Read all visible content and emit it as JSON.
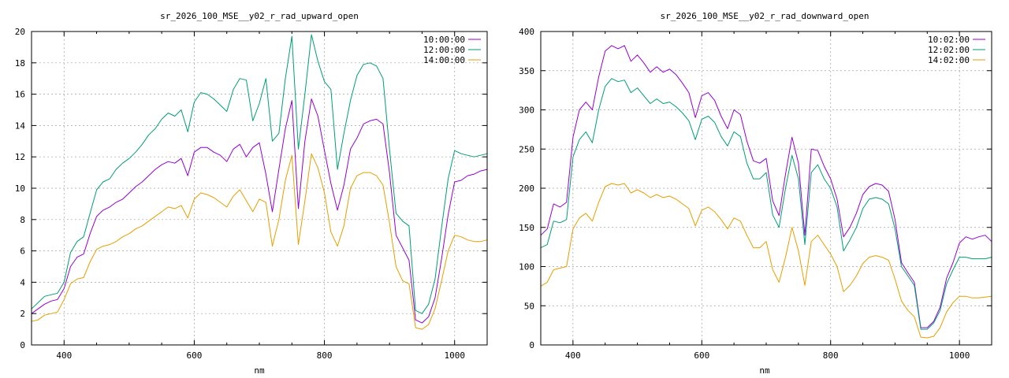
{
  "chart_data": [
    {
      "type": "line",
      "title": "sr_2026_100_MSE__y02_r_rad_upward_open",
      "xlabel": "nm",
      "ylabel": "",
      "xlim": [
        350,
        1050
      ],
      "ylim": [
        0,
        20
      ],
      "xticks": [
        400,
        600,
        800,
        1000
      ],
      "yticks": [
        0,
        2,
        4,
        6,
        8,
        10,
        12,
        14,
        16,
        18,
        20
      ],
      "grid": true,
      "legend_position": "top-right",
      "x": [
        350,
        360,
        370,
        380,
        390,
        400,
        410,
        420,
        430,
        440,
        450,
        460,
        470,
        480,
        490,
        500,
        510,
        520,
        530,
        540,
        550,
        560,
        570,
        580,
        590,
        600,
        610,
        620,
        630,
        640,
        650,
        660,
        670,
        680,
        690,
        700,
        710,
        720,
        730,
        740,
        750,
        760,
        770,
        780,
        790,
        800,
        810,
        820,
        830,
        840,
        850,
        860,
        870,
        880,
        890,
        900,
        910,
        920,
        930,
        940,
        950,
        960,
        970,
        980,
        990,
        1000,
        1010,
        1020,
        1030,
        1040,
        1050
      ],
      "series": [
        {
          "name": "10:00:00",
          "color": "#9400d3",
          "values": [
            2.0,
            2.3,
            2.6,
            2.8,
            2.9,
            3.6,
            5.0,
            5.6,
            5.8,
            7.1,
            8.2,
            8.6,
            8.8,
            9.1,
            9.3,
            9.7,
            10.1,
            10.4,
            10.8,
            11.2,
            11.5,
            11.7,
            11.6,
            11.9,
            10.8,
            12.3,
            12.6,
            12.6,
            12.3,
            12.1,
            11.7,
            12.5,
            12.8,
            12.0,
            12.6,
            12.9,
            10.9,
            8.5,
            11.2,
            13.8,
            15.6,
            8.7,
            13.0,
            15.7,
            14.6,
            12.4,
            10.3,
            8.6,
            10.2,
            12.5,
            13.2,
            14.1,
            14.3,
            14.4,
            14.1,
            11.0,
            7.0,
            6.2,
            5.4,
            1.6,
            1.4,
            1.8,
            3.0,
            5.5,
            8.3,
            10.4,
            10.5,
            10.8,
            10.9,
            11.1,
            11.2
          ]
        },
        {
          "name": "12:00:00",
          "color": "#009e73",
          "values": [
            2.3,
            2.7,
            3.1,
            3.2,
            3.3,
            4.0,
            5.9,
            6.6,
            6.9,
            8.4,
            9.9,
            10.4,
            10.6,
            11.2,
            11.6,
            11.9,
            12.3,
            12.8,
            13.4,
            13.8,
            14.4,
            14.8,
            14.6,
            15.0,
            13.6,
            15.5,
            16.1,
            16.0,
            15.7,
            15.3,
            14.9,
            16.3,
            17.0,
            16.9,
            14.3,
            15.4,
            17.0,
            13.0,
            13.5,
            17.0,
            19.7,
            12.5,
            16.0,
            19.8,
            18.1,
            16.8,
            16.3,
            11.2,
            13.5,
            15.6,
            17.2,
            17.9,
            18.0,
            17.8,
            17.0,
            12.5,
            8.4,
            7.9,
            7.6,
            2.2,
            2.0,
            2.6,
            4.2,
            7.5,
            10.6,
            12.4,
            12.2,
            12.1,
            12.0,
            12.1,
            12.2
          ]
        },
        {
          "name": "14:00:00",
          "color": "#e69f00",
          "values": [
            1.5,
            1.6,
            1.9,
            2.0,
            2.1,
            2.9,
            3.9,
            4.2,
            4.3,
            5.3,
            6.1,
            6.3,
            6.4,
            6.6,
            6.9,
            7.1,
            7.4,
            7.6,
            7.9,
            8.2,
            8.5,
            8.8,
            8.7,
            8.9,
            8.1,
            9.3,
            9.7,
            9.6,
            9.4,
            9.1,
            8.8,
            9.5,
            9.9,
            9.2,
            8.5,
            9.3,
            9.1,
            6.3,
            8.0,
            10.5,
            12.1,
            6.4,
            9.2,
            12.2,
            11.3,
            9.7,
            7.2,
            6.3,
            7.6,
            10.0,
            10.8,
            11.0,
            11.0,
            10.8,
            10.2,
            7.8,
            5.0,
            4.1,
            3.9,
            1.1,
            1.0,
            1.3,
            2.3,
            4.1,
            6.0,
            7.0,
            6.9,
            6.7,
            6.6,
            6.6,
            6.7
          ]
        }
      ]
    },
    {
      "type": "line",
      "title": "sr_2026_100_MSE__y02_r_rad_downward_open",
      "xlabel": "nm",
      "ylabel": "",
      "xlim": [
        350,
        1050
      ],
      "ylim": [
        0,
        400
      ],
      "xticks": [
        400,
        600,
        800,
        1000
      ],
      "yticks": [
        0,
        50,
        100,
        150,
        200,
        250,
        300,
        350,
        400
      ],
      "grid": true,
      "legend_position": "top-right",
      "x": [
        350,
        360,
        370,
        380,
        390,
        400,
        410,
        420,
        430,
        440,
        450,
        460,
        470,
        480,
        490,
        500,
        510,
        520,
        530,
        540,
        550,
        560,
        570,
        580,
        590,
        600,
        610,
        620,
        630,
        640,
        650,
        660,
        670,
        680,
        690,
        700,
        710,
        720,
        730,
        740,
        750,
        760,
        770,
        780,
        790,
        800,
        810,
        820,
        830,
        840,
        850,
        860,
        870,
        880,
        890,
        900,
        910,
        920,
        930,
        940,
        950,
        960,
        970,
        980,
        990,
        1000,
        1010,
        1020,
        1030,
        1040,
        1050
      ],
      "series": [
        {
          "name": "10:02:00",
          "color": "#9400d3",
          "values": [
            140,
            148,
            180,
            176,
            182,
            265,
            300,
            310,
            300,
            342,
            375,
            382,
            378,
            382,
            362,
            370,
            360,
            348,
            355,
            348,
            352,
            345,
            334,
            322,
            290,
            318,
            322,
            312,
            292,
            276,
            300,
            294,
            260,
            235,
            232,
            238,
            184,
            165,
            218,
            265,
            232,
            140,
            250,
            248,
            228,
            212,
            186,
            138,
            150,
            168,
            192,
            202,
            206,
            204,
            196,
            160,
            105,
            92,
            80,
            22,
            22,
            30,
            48,
            85,
            105,
            130,
            138,
            135,
            138,
            140,
            132
          ]
        },
        {
          "name": "12:02:00",
          "color": "#009e73",
          "values": [
            124,
            128,
            158,
            156,
            160,
            240,
            262,
            272,
            258,
            300,
            330,
            340,
            336,
            338,
            322,
            328,
            318,
            308,
            314,
            308,
            310,
            304,
            296,
            286,
            262,
            288,
            292,
            284,
            266,
            254,
            272,
            266,
            232,
            212,
            212,
            220,
            166,
            150,
            200,
            242,
            212,
            128,
            220,
            230,
            212,
            200,
            176,
            120,
            134,
            150,
            174,
            186,
            188,
            186,
            180,
            148,
            100,
            88,
            76,
            20,
            20,
            28,
            44,
            78,
            96,
            112,
            112,
            110,
            110,
            110,
            112
          ]
        },
        {
          "name": "14:02:00",
          "color": "#e69f00",
          "values": [
            75,
            80,
            96,
            98,
            100,
            148,
            162,
            168,
            158,
            182,
            202,
            206,
            204,
            206,
            194,
            198,
            194,
            188,
            192,
            188,
            190,
            186,
            180,
            174,
            152,
            172,
            176,
            170,
            160,
            148,
            162,
            158,
            140,
            124,
            124,
            132,
            96,
            80,
            112,
            150,
            120,
            76,
            132,
            140,
            128,
            116,
            100,
            68,
            76,
            88,
            104,
            112,
            114,
            112,
            108,
            84,
            56,
            44,
            36,
            10,
            9,
            11,
            22,
            42,
            54,
            62,
            62,
            60,
            60,
            61,
            62
          ]
        }
      ]
    }
  ]
}
